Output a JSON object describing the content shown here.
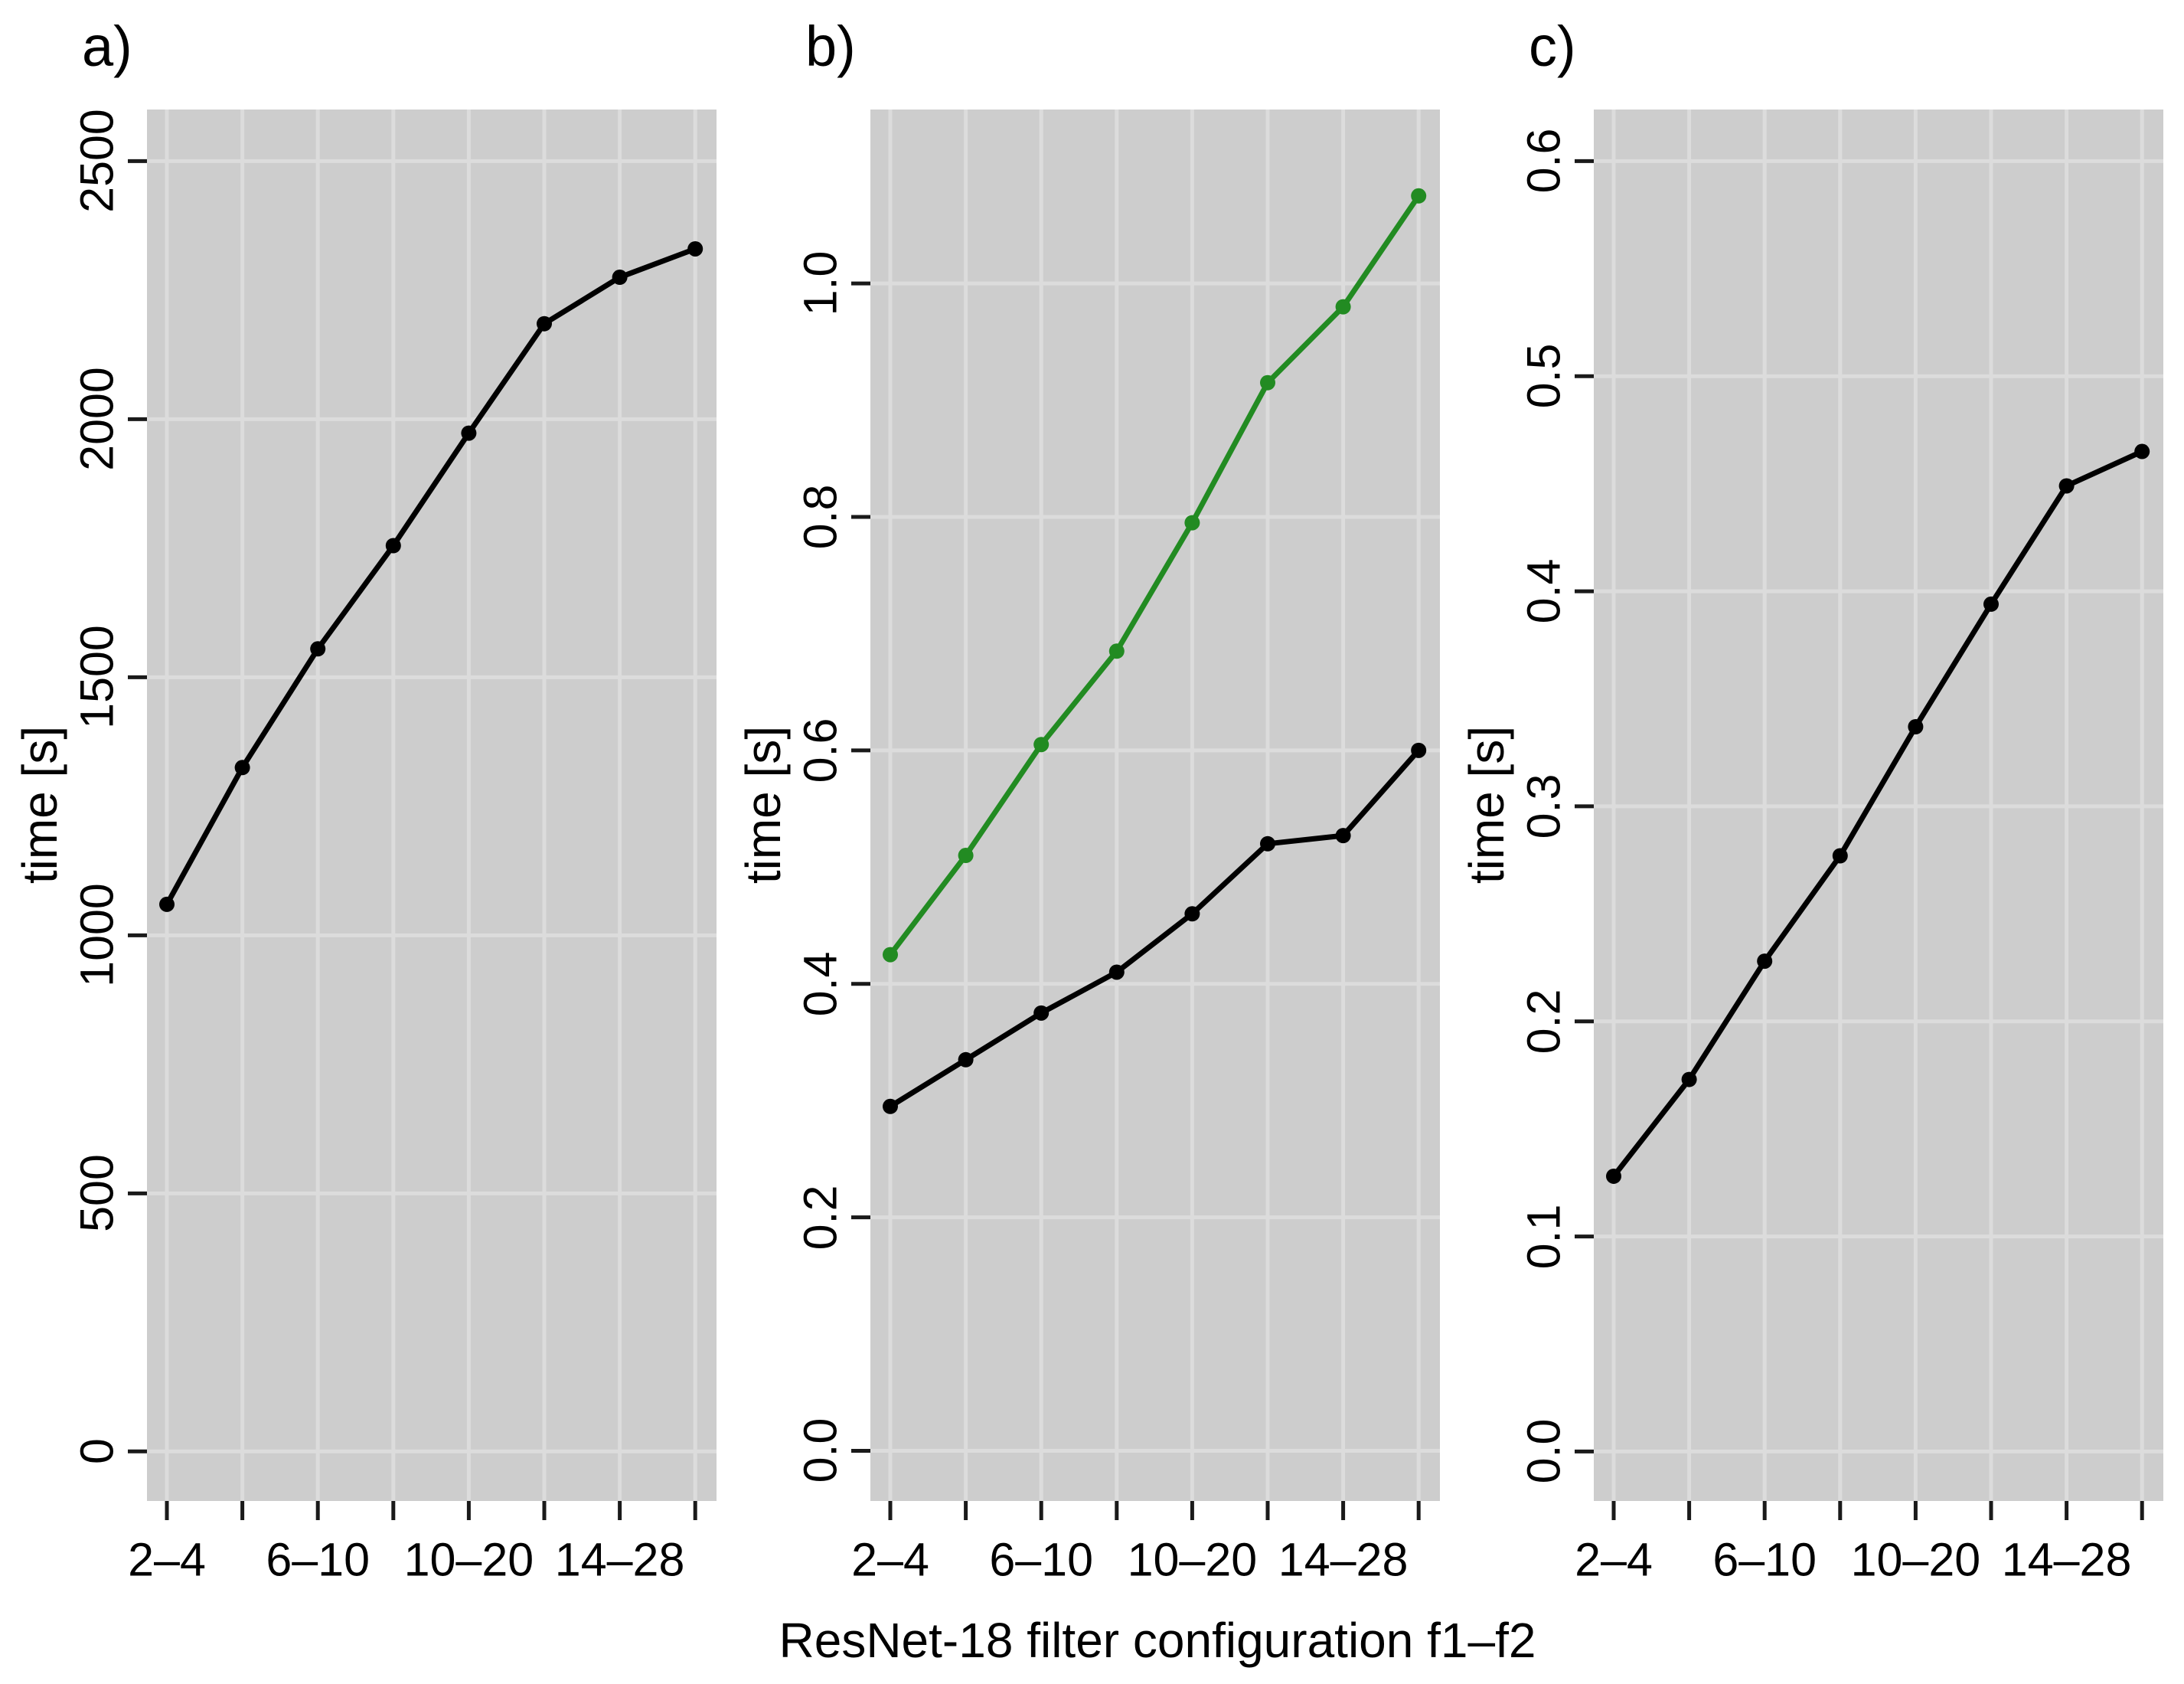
{
  "figure": {
    "xlabel": "ResNet-18 filter configuration f1–f2",
    "colors": {
      "background": "#ffffff",
      "panel_bg": "#cdcdcd",
      "grid": "#dcdcdc",
      "tick": "#1a1a1a",
      "text": "#000000",
      "series_black": "#000000",
      "series_green": "#228B22"
    }
  },
  "chart_data": [
    {
      "type": "line",
      "panel_label": "a)",
      "ylabel": "time [s]",
      "xlabel_shared": "ResNet-18 filter configuration f1–f2",
      "x_tick_labels": [
        "2–4",
        "",
        "6–10",
        "",
        "10–20",
        "",
        "14–28",
        ""
      ],
      "yticks": [
        {
          "v": 0,
          "label": "0"
        },
        {
          "v": 500,
          "label": "500"
        },
        {
          "v": 1000,
          "label": "1000"
        },
        {
          "v": 1500,
          "label": "1500"
        },
        {
          "v": 2000,
          "label": "2000"
        },
        {
          "v": 2500,
          "label": "2500"
        }
      ],
      "ylim": [
        -96,
        2600
      ],
      "grid": true,
      "legend": "none",
      "series": [
        {
          "name": "time-black",
          "color": "#000000",
          "values": [
            1060,
            1325,
            1555,
            1755,
            1973,
            2185,
            2275,
            2330
          ]
        }
      ]
    },
    {
      "type": "line",
      "panel_label": "b)",
      "ylabel": "time [s]",
      "xlabel_shared": "ResNet-18 filter configuration f1–f2",
      "x_tick_labels": [
        "2–4",
        "",
        "6–10",
        "",
        "10–20",
        "",
        "14–28",
        ""
      ],
      "yticks": [
        {
          "v": 0.0,
          "label": "0.0"
        },
        {
          "v": 0.2,
          "label": "0.2"
        },
        {
          "v": 0.4,
          "label": "0.4"
        },
        {
          "v": 0.6,
          "label": "0.6"
        },
        {
          "v": 0.8,
          "label": "0.8"
        },
        {
          "v": 1.0,
          "label": "1.0"
        }
      ],
      "ylim": [
        -0.043,
        1.149
      ],
      "grid": true,
      "legend": "none",
      "series": [
        {
          "name": "time-black",
          "color": "#000000",
          "values": [
            0.295,
            0.335,
            0.375,
            0.41,
            0.46,
            0.52,
            0.527,
            0.6
          ]
        },
        {
          "name": "time-green",
          "color": "#228B22",
          "values": [
            0.425,
            0.51,
            0.605,
            0.685,
            0.795,
            0.915,
            0.98,
            1.075
          ]
        }
      ]
    },
    {
      "type": "line",
      "panel_label": "c)",
      "ylabel": "time [s]",
      "xlabel_shared": "ResNet-18 filter configuration f1–f2",
      "x_tick_labels": [
        "2–4",
        "",
        "6–10",
        "",
        "10–20",
        "",
        "14–28",
        ""
      ],
      "yticks": [
        {
          "v": 0.0,
          "label": "0.0"
        },
        {
          "v": 0.1,
          "label": "0.1"
        },
        {
          "v": 0.2,
          "label": "0.2"
        },
        {
          "v": 0.3,
          "label": "0.3"
        },
        {
          "v": 0.4,
          "label": "0.4"
        },
        {
          "v": 0.5,
          "label": "0.5"
        },
        {
          "v": 0.6,
          "label": "0.6"
        }
      ],
      "ylim": [
        -0.023,
        0.624
      ],
      "grid": true,
      "legend": "none",
      "series": [
        {
          "name": "time-black",
          "color": "#000000",
          "values": [
            0.128,
            0.173,
            0.228,
            0.277,
            0.337,
            0.394,
            0.449,
            0.465
          ]
        }
      ]
    }
  ]
}
